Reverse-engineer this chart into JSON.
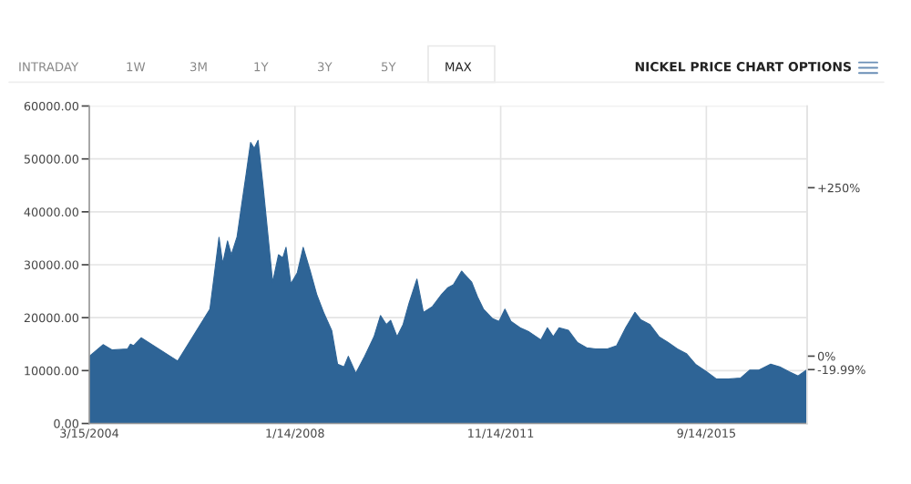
{
  "chart_data": {
    "type": "area",
    "annotations": [
      "INTRADAY",
      "1W",
      "3M",
      "1Y",
      "3Y",
      "5Y",
      "MAX",
      "NICKEL PRICE CHART OPTIONS"
    ],
    "x": [
      "2004-03-15",
      "2004-06-17",
      "2004-08-18",
      "2004-12-01",
      "2004-12-20",
      "2005-01-11",
      "2005-03-03",
      "2005-11-07",
      "2006-06-14",
      "2006-07-13",
      "2006-08-15",
      "2006-09-09",
      "2006-10-12",
      "2006-11-07",
      "2006-12-16",
      "2007-01-15",
      "2007-02-17",
      "2007-03-18",
      "2007-04-12",
      "2007-05-08",
      "2007-06-10",
      "2007-08-15",
      "2007-09-24",
      "2007-10-23",
      "2007-11-14",
      "2007-12-17",
      "2008-01-30",
      "2008-03-10",
      "2008-04-27",
      "2008-06-10",
      "2008-07-27",
      "2008-09-20",
      "2008-10-30",
      "2008-12-13",
      "2009-01-11",
      "2009-03-03",
      "2009-04-27",
      "2009-07-05",
      "2009-08-18",
      "2009-09-27",
      "2009-10-26",
      "2009-12-09",
      "2010-01-19",
      "2010-02-28",
      "2010-04-23",
      "2010-06-06",
      "2010-08-07",
      "2010-10-08",
      "2010-11-17",
      "2010-12-27",
      "2011-02-21",
      "2011-03-22",
      "2011-05-01",
      "2011-06-10",
      "2011-07-20",
      "2011-09-20",
      "2011-11-03",
      "2011-12-13",
      "2012-01-23",
      "2012-03-25",
      "2012-05-26",
      "2012-08-14",
      "2012-09-27",
      "2012-11-06",
      "2012-12-16",
      "2013-02-17",
      "2013-04-20",
      "2013-06-21",
      "2013-08-22",
      "2013-11-10",
      "2014-01-11",
      "2014-03-14",
      "2014-05-16",
      "2014-06-25",
      "2014-08-26",
      "2014-10-27",
      "2014-12-28",
      "2015-02-28",
      "2015-05-01",
      "2015-07-02",
      "2015-09-14",
      "2015-11-22",
      "2016-02-10",
      "2016-05-05",
      "2016-07-06",
      "2016-09-06",
      "2016-11-25",
      "2017-01-26",
      "2017-03-29",
      "2017-05-30",
      "2017-07-31"
    ],
    "series": [
      {
        "color": "#2e6496",
        "values": [
          12700,
          14900,
          13900,
          14100,
          15000,
          14700,
          16200,
          11800,
          21600,
          27900,
          35200,
          30200,
          34500,
          31900,
          35300,
          41100,
          47400,
          53100,
          52000,
          53500,
          45100,
          26700,
          31900,
          31300,
          33300,
          26400,
          28500,
          33300,
          28800,
          24400,
          21000,
          17600,
          11200,
          10700,
          12700,
          9500,
          12400,
          16400,
          20400,
          18700,
          19500,
          16400,
          18700,
          22700,
          27300,
          21000,
          22100,
          24400,
          25600,
          26200,
          28800,
          27900,
          26700,
          23900,
          21600,
          19800,
          19300,
          21600,
          19300,
          18100,
          17300,
          15800,
          18100,
          16400,
          18100,
          17600,
          15300,
          14300,
          14100,
          14100,
          14700,
          18100,
          21000,
          19600,
          18700,
          16400,
          15300,
          14100,
          13200,
          11200,
          9800,
          8400,
          8400,
          8600,
          10100,
          10100,
          11200,
          10700,
          9800,
          9000,
          10200
        ]
      }
    ],
    "xlim": [
      "2004-03-15",
      "2017-07-31"
    ],
    "xticks": [
      {
        "value": "2004-03-15",
        "label": "3/15/2004"
      },
      {
        "value": "2008-01-14",
        "label": "1/14/2008"
      },
      {
        "value": "2011-11-14",
        "label": "11/14/2011"
      },
      {
        "value": "2015-09-14",
        "label": "9/14/2015"
      }
    ],
    "ylim": [
      0,
      60000
    ],
    "yticks": [
      {
        "value": 0,
        "label": "0.00"
      },
      {
        "value": 10000,
        "label": "10000.00"
      },
      {
        "value": 20000,
        "label": "20000.00"
      },
      {
        "value": 30000,
        "label": "30000.00"
      },
      {
        "value": 40000,
        "label": "40000.00"
      },
      {
        "value": 50000,
        "label": "50000.00"
      },
      {
        "value": 60000,
        "label": "60000.00"
      }
    ],
    "y2lim": [
      -100,
      371.3
    ],
    "y2ticks": [
      {
        "value": 250,
        "label": "+250%"
      },
      {
        "value": 0,
        "label": "0%"
      },
      {
        "value": -19.99,
        "label": "-19.99%"
      }
    ],
    "grid": true
  }
}
